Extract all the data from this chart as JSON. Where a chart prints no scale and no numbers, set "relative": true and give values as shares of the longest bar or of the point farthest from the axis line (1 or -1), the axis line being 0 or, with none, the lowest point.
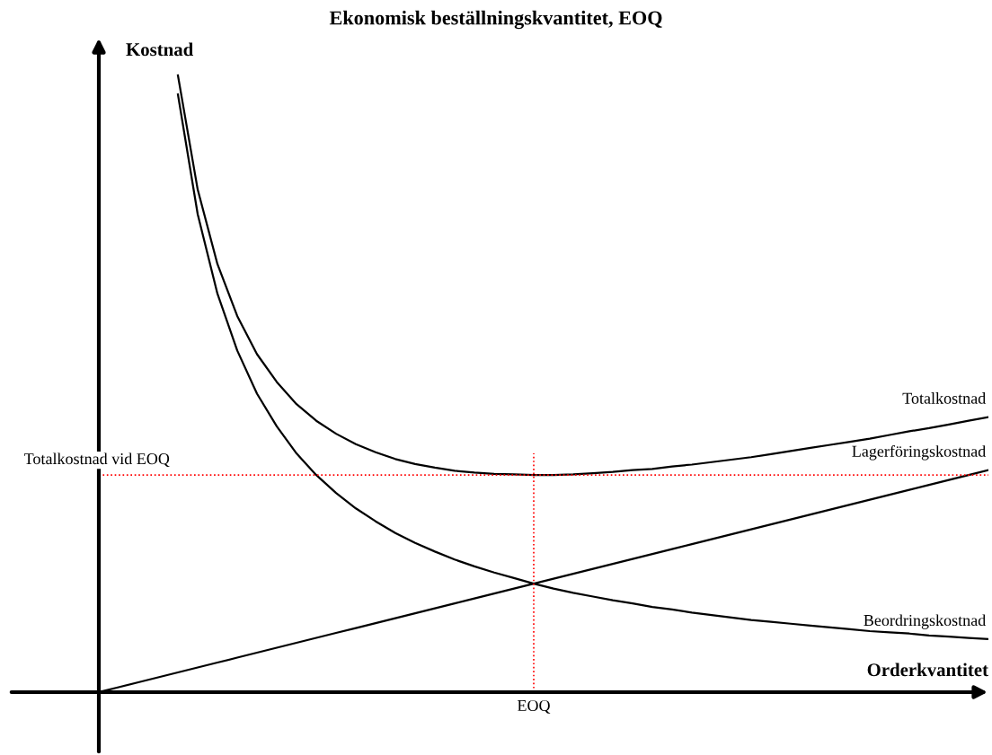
{
  "chart_data": {
    "type": "line",
    "title": "Ekonomisk beställningskvantitet, EOQ",
    "xlabel": "Orderkvantitet",
    "ylabel": "Kostnad",
    "relative": true,
    "legend": false,
    "categories": [
      null,
      null,
      null,
      null,
      null,
      null,
      null,
      null,
      null,
      null,
      null,
      null,
      null,
      null,
      null,
      null,
      null,
      null,
      null,
      null,
      null,
      null,
      null,
      null,
      null,
      null,
      null,
      null,
      null,
      null,
      null,
      null,
      null,
      null,
      null,
      null,
      null,
      null,
      null,
      null,
      null,
      null,
      null,
      null,
      null,
      null
    ],
    "series": [
      {
        "name": "Totalkostnad",
        "color": "#000000",
        "values": [
          null,
          null,
          null,
          null,
          1.0,
          0.815,
          0.694,
          0.61,
          0.548,
          0.503,
          0.467,
          0.44,
          0.419,
          0.402,
          0.389,
          0.378,
          0.37,
          0.364,
          0.359,
          0.356,
          0.354,
          0.353,
          0.352,
          0.352,
          0.353,
          0.355,
          0.357,
          0.36,
          0.362,
          0.366,
          0.369,
          0.373,
          0.377,
          0.381,
          0.386,
          0.391,
          0.396,
          0.401,
          0.406,
          0.411,
          0.417,
          0.423,
          0.428,
          0.434,
          0.44,
          0.446
        ]
      },
      {
        "name": "Lagerföringskostnad",
        "color": "#000000",
        "values": [
          0,
          0.008,
          0.016,
          0.024,
          0.032,
          0.04,
          0.048,
          0.056,
          0.064,
          0.072,
          0.08,
          0.088,
          0.096,
          0.104,
          0.112,
          0.12,
          0.128,
          0.136,
          0.144,
          0.152,
          0.16,
          0.168,
          0.176,
          0.184,
          0.192,
          0.2,
          0.208,
          0.216,
          0.224,
          0.232,
          0.24,
          0.248,
          0.256,
          0.264,
          0.272,
          0.28,
          0.288,
          0.296,
          0.304,
          0.312,
          0.32,
          0.328,
          0.336,
          0.344,
          0.352,
          0.36
        ]
      },
      {
        "name": "Beordringskostnad",
        "color": "#000000",
        "values": [
          null,
          null,
          null,
          null,
          0.969,
          0.775,
          0.646,
          0.554,
          0.484,
          0.431,
          0.387,
          0.352,
          0.323,
          0.298,
          0.277,
          0.258,
          0.242,
          0.228,
          0.215,
          0.204,
          0.194,
          0.185,
          0.176,
          0.168,
          0.161,
          0.155,
          0.149,
          0.144,
          0.138,
          0.134,
          0.129,
          0.125,
          0.121,
          0.117,
          0.114,
          0.111,
          0.108,
          0.105,
          0.102,
          0.099,
          0.097,
          0.095,
          0.092,
          0.09,
          0.088,
          0.086
        ]
      }
    ],
    "ref_lines": [
      {
        "axis": "y",
        "value": 0.352,
        "label": "Totalkostnad vid EOQ",
        "color": "#ff0000",
        "line_style": "dotted"
      }
    ],
    "annotations": [
      "EOQ"
    ]
  }
}
